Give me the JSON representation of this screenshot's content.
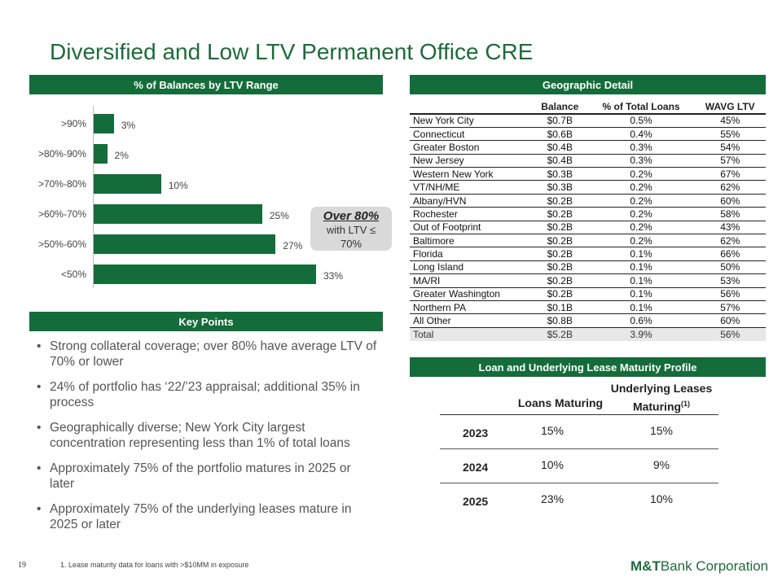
{
  "title": "Diversified and Low LTV Permanent Office CRE",
  "ltv_section": {
    "header": "% of Balances by LTV Range",
    "callout": {
      "big": "Over 80%",
      "line1": "with LTV ≤",
      "line2": "70%"
    }
  },
  "chart_data": {
    "type": "bar",
    "orientation": "horizontal",
    "title": "% of Balances by LTV Range",
    "categories": [
      ">90%",
      ">80%-90%",
      ">70%-80%",
      ">60%-70%",
      ">50%-60%",
      "<50%"
    ],
    "values": [
      3,
      2,
      10,
      25,
      27,
      33
    ],
    "value_labels": [
      "3%",
      "2%",
      "10%",
      "25%",
      "27%",
      "33%"
    ],
    "xlim": [
      0,
      33
    ],
    "color": "#146c3a"
  },
  "key_points": {
    "header": "Key Points",
    "items": [
      "Strong collateral coverage; over 80% have average LTV of 70% or lower",
      "24% of portfolio has ‘22/’23 appraisal; additional 35% in process",
      "Geographically diverse; New York City largest concentration representing less than 1% of total loans",
      "Approximately 75% of the portfolio matures in 2025 or later",
      "Approximately 75% of the underlying leases mature in 2025 or later"
    ]
  },
  "geo": {
    "header": "Geographic Detail",
    "columns": [
      "",
      "Balance",
      "% of Total Loans",
      "WAVG LTV"
    ],
    "rows": [
      [
        "New York City",
        "$0.7B",
        "0.5%",
        "45%"
      ],
      [
        "Connecticut",
        "$0.6B",
        "0.4%",
        "55%"
      ],
      [
        "Greater Boston",
        "$0.4B",
        "0.3%",
        "54%"
      ],
      [
        "New Jersey",
        "$0.4B",
        "0.3%",
        "57%"
      ],
      [
        "Western New York",
        "$0.3B",
        "0.2%",
        "67%"
      ],
      [
        "VT/NH/ME",
        "$0.3B",
        "0.2%",
        "62%"
      ],
      [
        "Albany/HVN",
        "$0.2B",
        "0.2%",
        "60%"
      ],
      [
        "Rochester",
        "$0.2B",
        "0.2%",
        "58%"
      ],
      [
        "Out of Footprint",
        "$0.2B",
        "0.2%",
        "43%"
      ],
      [
        "Baltimore",
        "$0.2B",
        "0.2%",
        "62%"
      ],
      [
        "Florida",
        "$0.2B",
        "0.1%",
        "66%"
      ],
      [
        "Long Island",
        "$0.2B",
        "0.1%",
        "50%"
      ],
      [
        "MA/RI",
        "$0.2B",
        "0.1%",
        "53%"
      ],
      [
        "Greater Washington",
        "$0.2B",
        "0.1%",
        "56%"
      ],
      [
        "Northern PA",
        "$0.1B",
        "0.1%",
        "57%"
      ],
      [
        "All Other",
        "$0.8B",
        "0.6%",
        "60%"
      ]
    ],
    "total": [
      "Total",
      "$5.2B",
      "3.9%",
      "56%"
    ]
  },
  "maturity": {
    "header": "Loan and Underlying Lease Maturity Profile",
    "col1": "Loans Maturing",
    "col2_line1": "Underlying Leases",
    "col2_line2": "Maturing",
    "col2_sup": "(1)",
    "rows": [
      {
        "year": "2023",
        "loans": "15%",
        "leases": "15%"
      },
      {
        "year": "2024",
        "loans": "10%",
        "leases": "9%"
      },
      {
        "year": "2025",
        "loans": "23%",
        "leases": "10%"
      }
    ]
  },
  "footer": {
    "page": "19",
    "footnote": "1. Lease maturity data for loans with >$10MM in exposure",
    "logo_bold": "M&T",
    "logo_rest": "Bank Corporation"
  }
}
